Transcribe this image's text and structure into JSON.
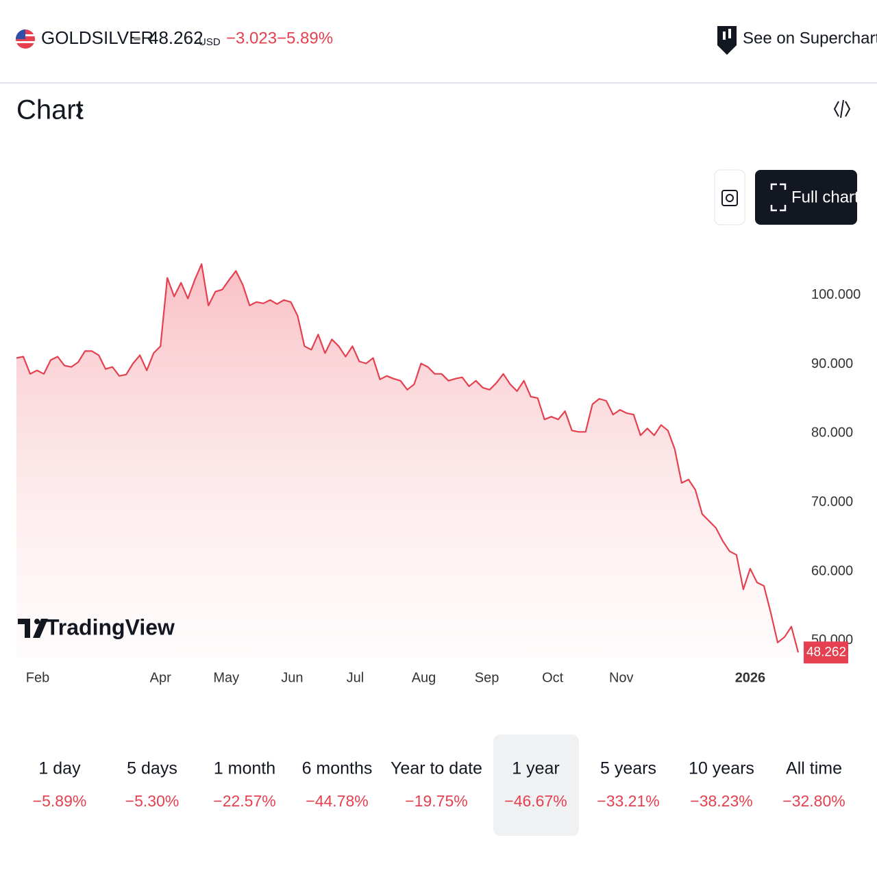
{
  "header": {
    "symbol": "GOLDSILVER",
    "currency": "USD",
    "change": "−3.023",
    "change_percent": "−5.89%",
    "supercharts": "See on Supercharts"
  },
  "section_title": "Chart",
  "full_chart": "Full chart",
  "brand": "TradingView",
  "chart_data": {
    "type": "area",
    "color": "#e5404f",
    "values": [
      90.9,
      91.1,
      88.6,
      89.1,
      88.6,
      90.6,
      91.1,
      89.8,
      89.6,
      90.3,
      91.9,
      91.9,
      91.3,
      89.3,
      89.6,
      88.3,
      88.5,
      90.1,
      91.3,
      89.1,
      91.6,
      92.6,
      102.5,
      99.8,
      101.8,
      99.5,
      102.2,
      104.5,
      98.5,
      100.5,
      100.8,
      102.2,
      103.5,
      101.5,
      98.5,
      99.0,
      98.8,
      99.3,
      98.7,
      99.3,
      99.0,
      97.0,
      92.6,
      92.1,
      94.3,
      91.6,
      93.6,
      92.6,
      91.1,
      92.6,
      90.4,
      90.1,
      90.9,
      87.8,
      88.3,
      87.9,
      87.6,
      86.3,
      87.1,
      90.1,
      89.6,
      88.6,
      88.6,
      87.6,
      87.9,
      88.1,
      86.8,
      87.6,
      86.6,
      86.3,
      87.3,
      88.6,
      87.1,
      86.1,
      87.6,
      85.3,
      85.1,
      82.0,
      82.4,
      82.0,
      83.2,
      80.4,
      80.2,
      80.2,
      84.2,
      85.0,
      84.7,
      82.7,
      83.4,
      82.9,
      82.7,
      79.7,
      80.7,
      79.7,
      81.2,
      80.4,
      77.7,
      72.8,
      73.3,
      71.8,
      68.3,
      67.3,
      66.3,
      64.4,
      62.9,
      62.4,
      57.4,
      60.4,
      58.4,
      57.9,
      54.0,
      49.7,
      50.5,
      52.0,
      48.262
    ],
    "xlim": [
      0,
      114
    ],
    "xticks": [
      {
        "value": 3.1,
        "label": "Feb"
      },
      {
        "value": 21,
        "label": "Apr"
      },
      {
        "value": 30.6,
        "label": "May"
      },
      {
        "value": 40.2,
        "label": "Jun"
      },
      {
        "value": 49.4,
        "label": "Jul"
      },
      {
        "value": 59.4,
        "label": "Aug"
      },
      {
        "value": 68.6,
        "label": "Sep"
      },
      {
        "value": 78.2,
        "label": "Oct"
      },
      {
        "value": 88.2,
        "label": "Nov"
      },
      {
        "value": 107,
        "label": "2026"
      }
    ],
    "ylim": [
      47.5,
      109
    ],
    "yticks": [
      {
        "value": 50,
        "label": "50.000"
      },
      {
        "value": 60,
        "label": "60.000"
      },
      {
        "value": 70,
        "label": "70.000"
      },
      {
        "value": 80,
        "label": "80.000"
      },
      {
        "value": 90,
        "label": "90.000"
      },
      {
        "value": 100,
        "label": "100.000"
      }
    ]
  },
  "periods": [
    {
      "label": "1 day",
      "change": "−5.89%"
    },
    {
      "label": "5 days",
      "change": "−5.30%"
    },
    {
      "label": "1 month",
      "change": "−22.57%"
    },
    {
      "label": "6 months",
      "change": "−44.78%"
    },
    {
      "label": "Year to date",
      "change": "−19.75%"
    },
    {
      "label": "1 year",
      "change": "−46.67%"
    },
    {
      "label": "5 years",
      "change": "−33.21%"
    },
    {
      "label": "10 years",
      "change": "−38.23%"
    },
    {
      "label": "All time",
      "change": "−32.80%"
    }
  ]
}
